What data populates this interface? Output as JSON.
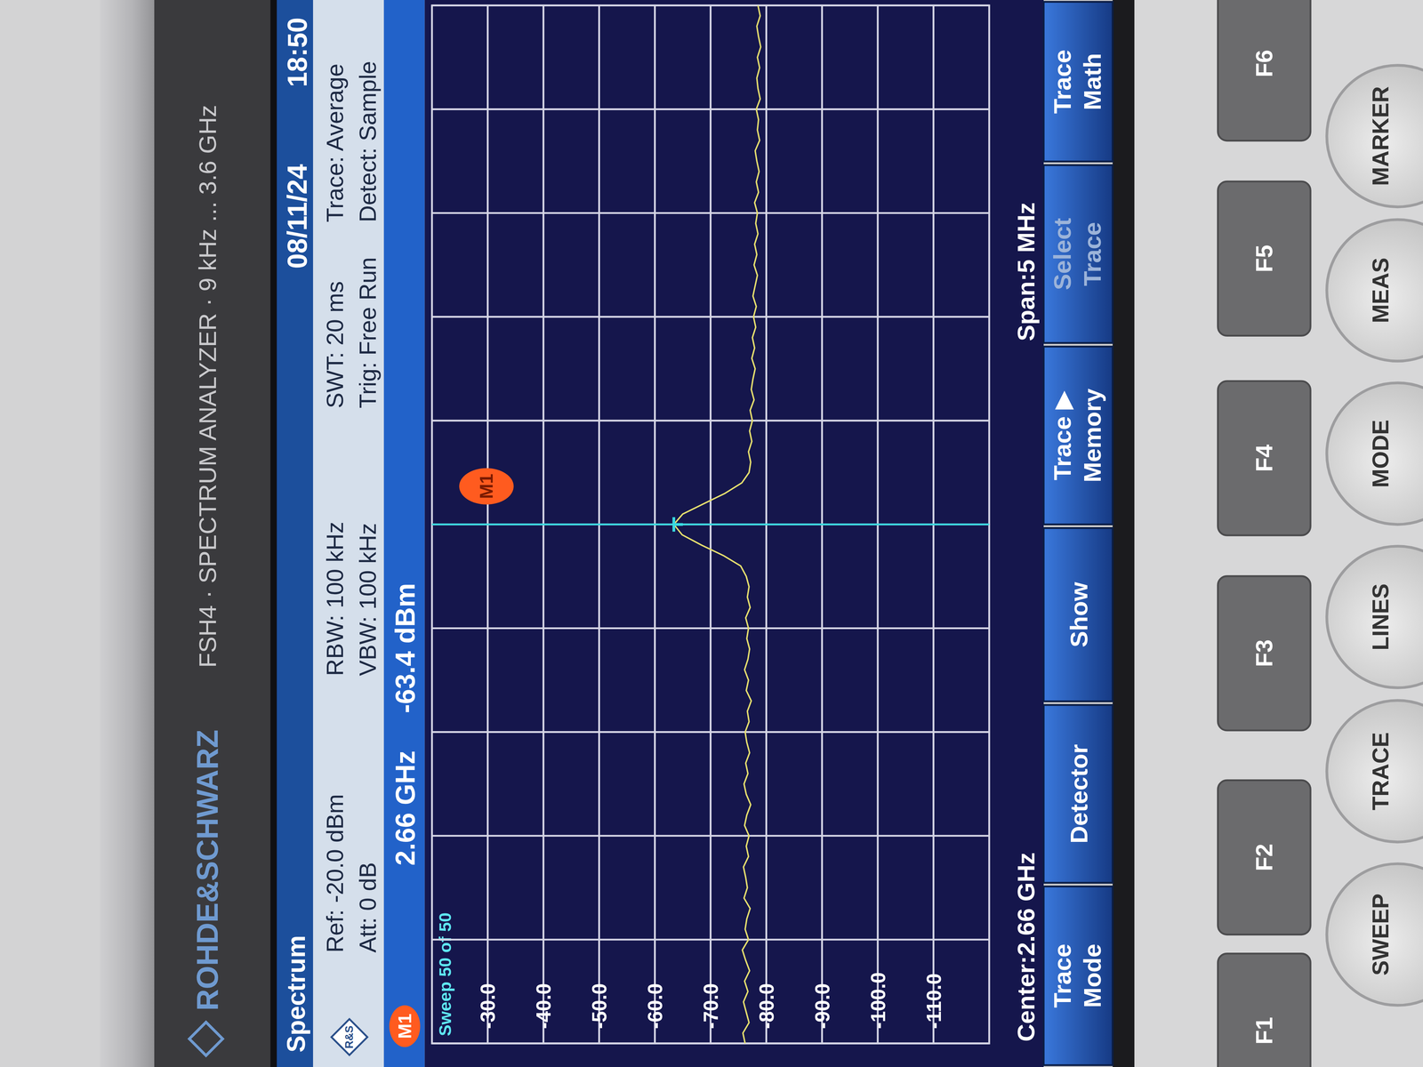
{
  "device": {
    "brand": "ROHDE&SCHWARZ",
    "model": "FSH4 · SPECTRUM ANALYZER · 9 kHz ... 3.6 GHz"
  },
  "header": {
    "title": "Spectrum",
    "logo": "R&S",
    "date": "08/11/24",
    "time": "18:50",
    "settings": [
      [
        "Ref: -20.0 dBm",
        "Att: 0 dB"
      ],
      [
        "RBW: 100 kHz",
        "VBW: 100 kHz"
      ],
      [
        "SWT: 20 ms",
        "Trig: Free Run"
      ],
      [
        "Trace: Average",
        "Detect: Sample"
      ]
    ],
    "sweep": "Sweep 50 of 50"
  },
  "chart_data": {
    "type": "line",
    "color": "#e6df6e",
    "grid": true,
    "tick_labels": "y",
    "xlim": [
      2.6575,
      2.6625
    ],
    "ylim": [
      -120,
      -20
    ],
    "xticks": [
      2.6575,
      2.658,
      2.6585,
      2.659,
      2.6595,
      2.66,
      2.6605,
      2.661,
      2.6615,
      2.662,
      2.6625
    ],
    "yticks": [
      {
        "value": -30,
        "label": "-30.0"
      },
      {
        "value": -40,
        "label": "-40.0"
      },
      {
        "value": -50,
        "label": "-50.0"
      },
      {
        "value": -60,
        "label": "-60.0"
      },
      {
        "value": -70,
        "label": "-70.0"
      },
      {
        "value": -80,
        "label": "-80.0"
      },
      {
        "value": -90,
        "label": "-90.0"
      },
      {
        "value": -100,
        "label": "-100.0"
      },
      {
        "value": -110,
        "label": "-110.0"
      }
    ],
    "x": [
      2.6575,
      2.65755,
      2.6576,
      2.65765,
      2.6577,
      2.65775,
      2.6578,
      2.65785,
      2.6579,
      2.65795,
      2.658,
      2.65805,
      2.6581,
      2.65815,
      2.6582,
      2.65825,
      2.6583,
      2.65835,
      2.6584,
      2.65845,
      2.6585,
      2.65855,
      2.6586,
      2.65865,
      2.6587,
      2.65875,
      2.6588,
      2.65885,
      2.6589,
      2.65895,
      2.659,
      2.65905,
      2.6591,
      2.65915,
      2.6592,
      2.65925,
      2.6593,
      2.65935,
      2.6594,
      2.65945,
      2.6595,
      2.65955,
      2.6596,
      2.65965,
      2.6597,
      2.65975,
      2.6598,
      2.65985,
      2.6599,
      2.65995,
      2.66,
      2.66005,
      2.6601,
      2.66015,
      2.6602,
      2.66025,
      2.6603,
      2.66035,
      2.6604,
      2.66045,
      2.6605,
      2.66055,
      2.6606,
      2.66065,
      2.6607,
      2.66075,
      2.6608,
      2.66085,
      2.6609,
      2.66095,
      2.661,
      2.66105,
      2.6611,
      2.66115,
      2.6612,
      2.66125,
      2.6613,
      2.66135,
      2.6614,
      2.66145,
      2.6615,
      2.66155,
      2.6616,
      2.66165,
      2.6617,
      2.66175,
      2.6618,
      2.66185,
      2.6619,
      2.66195,
      2.662,
      2.66205,
      2.6621,
      2.66215,
      2.6622,
      2.66225,
      2.6623,
      2.66235,
      2.6624,
      2.66245,
      2.6625
    ],
    "values": [
      -76.2,
      -75.8,
      -76.9,
      -76.4,
      -75.9,
      -76.7,
      -76.1,
      -77.0,
      -76.3,
      -75.7,
      -76.8,
      -76.2,
      -76.5,
      -77.1,
      -76.0,
      -76.6,
      -76.3,
      -75.9,
      -76.8,
      -76.4,
      -76.9,
      -76.1,
      -76.5,
      -77.2,
      -76.4,
      -76.0,
      -76.7,
      -76.3,
      -77.0,
      -76.5,
      -76.2,
      -76.9,
      -76.6,
      -77.3,
      -76.4,
      -76.8,
      -76.1,
      -76.7,
      -77.0,
      -76.5,
      -76.8,
      -76.3,
      -77.1,
      -76.6,
      -76.9,
      -76.4,
      -75.4,
      -72.3,
      -68.4,
      -64.9,
      -63.4,
      -65.0,
      -68.8,
      -72.6,
      -75.6,
      -76.9,
      -77.2,
      -76.8,
      -77.4,
      -77.0,
      -77.5,
      -77.1,
      -77.8,
      -77.3,
      -77.6,
      -78.0,
      -77.4,
      -77.9,
      -77.5,
      -78.1,
      -77.7,
      -78.2,
      -77.6,
      -78.0,
      -78.4,
      -77.8,
      -78.3,
      -77.9,
      -78.5,
      -78.1,
      -78.4,
      -77.9,
      -78.6,
      -78.2,
      -78.7,
      -78.3,
      -78.0,
      -78.8,
      -78.4,
      -78.6,
      -78.2,
      -78.9,
      -78.5,
      -78.3,
      -78.8,
      -78.4,
      -79.0,
      -78.6,
      -78.3,
      -78.9,
      -78.5
    ],
    "markers": [
      {
        "label": "M1",
        "x": 2.66,
        "y": -63.4,
        "x_label": "2.66 GHz",
        "y_label": "-63.4 dBm"
      }
    ]
  },
  "footer": {
    "center": "Center:2.66 GHz",
    "span": "Span:5 MHz"
  },
  "softkeys": [
    [
      "Trace",
      "Mode"
    ],
    [
      "Detector"
    ],
    [
      "Show"
    ],
    [
      "Trace ▶",
      "Memory"
    ],
    [
      "Select",
      "Trace"
    ],
    [
      "Trace",
      "Math"
    ]
  ],
  "keys": [
    "F1",
    "F2",
    "F3",
    "F4",
    "F5",
    "F6"
  ],
  "buttons": [
    "SWEEP",
    "TRACE",
    "LINES",
    "MODE",
    "MEAS",
    "MARKER"
  ]
}
